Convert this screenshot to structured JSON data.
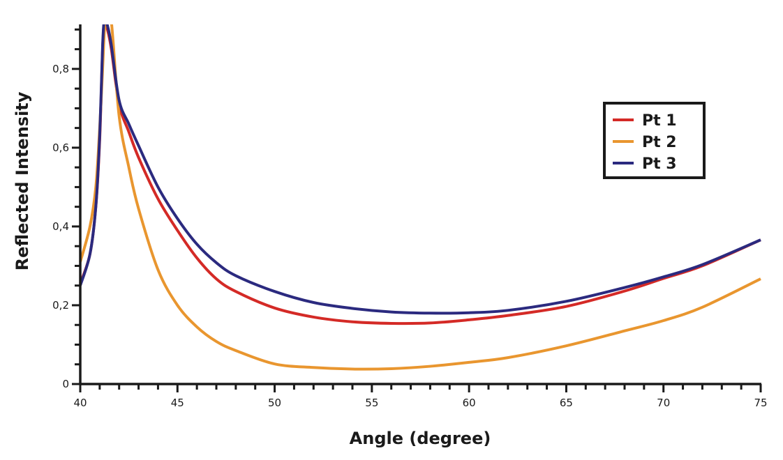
{
  "chart_data": {
    "type": "line",
    "title": "",
    "xlabel": "Angle (degree)",
    "ylabel": "Reflected Intensity",
    "xlim": [
      40,
      75
    ],
    "ylim": [
      0,
      0.913
    ],
    "xticks": [
      40,
      45,
      50,
      55,
      60,
      65,
      70,
      75
    ],
    "xtick_labels": [
      "40",
      "45",
      "50",
      "55",
      "60",
      "65",
      "70",
      "75"
    ],
    "yticks": [
      0,
      0.2,
      0.4,
      0.6,
      0.8
    ],
    "ytick_labels": [
      "0",
      "0,2",
      "0,4",
      "0,6",
      "0,8"
    ],
    "x_minor_step": 1,
    "y_minor_step": 0.05,
    "grid": false,
    "legend_position": "top-right",
    "x": [
      40,
      40.5,
      40.8,
      41,
      41.15,
      41.25,
      41.4,
      41.6,
      42,
      42.5,
      43,
      44,
      45,
      46,
      47,
      48,
      50,
      52,
      54,
      56,
      58,
      60,
      62,
      65,
      68,
      70,
      72,
      75
    ],
    "series": [
      {
        "name": "Pt 1",
        "color": "#d42a26",
        "values": [
          0.255,
          0.33,
          0.45,
          0.62,
          0.85,
          0.92,
          0.9,
          0.85,
          0.71,
          0.64,
          0.575,
          0.47,
          0.39,
          0.32,
          0.267,
          0.235,
          0.193,
          0.17,
          0.158,
          0.154,
          0.155,
          0.163,
          0.174,
          0.197,
          0.236,
          0.268,
          0.3,
          0.366
        ]
      },
      {
        "name": "Pt 2",
        "color": "#e9962f",
        "values": [
          0.31,
          0.4,
          0.5,
          0.65,
          0.8,
          0.9,
          0.93,
          0.92,
          0.68,
          0.55,
          0.445,
          0.29,
          0.2,
          0.145,
          0.108,
          0.085,
          0.051,
          0.042,
          0.038,
          0.039,
          0.045,
          0.055,
          0.067,
          0.097,
          0.135,
          0.161,
          0.195,
          0.267
        ]
      },
      {
        "name": "Pt 3",
        "color": "#2b2a7f",
        "values": [
          0.25,
          0.33,
          0.45,
          0.63,
          0.86,
          0.925,
          0.91,
          0.86,
          0.72,
          0.66,
          0.605,
          0.5,
          0.42,
          0.355,
          0.308,
          0.275,
          0.235,
          0.207,
          0.192,
          0.183,
          0.18,
          0.181,
          0.187,
          0.21,
          0.245,
          0.272,
          0.303,
          0.366
        ]
      }
    ]
  }
}
